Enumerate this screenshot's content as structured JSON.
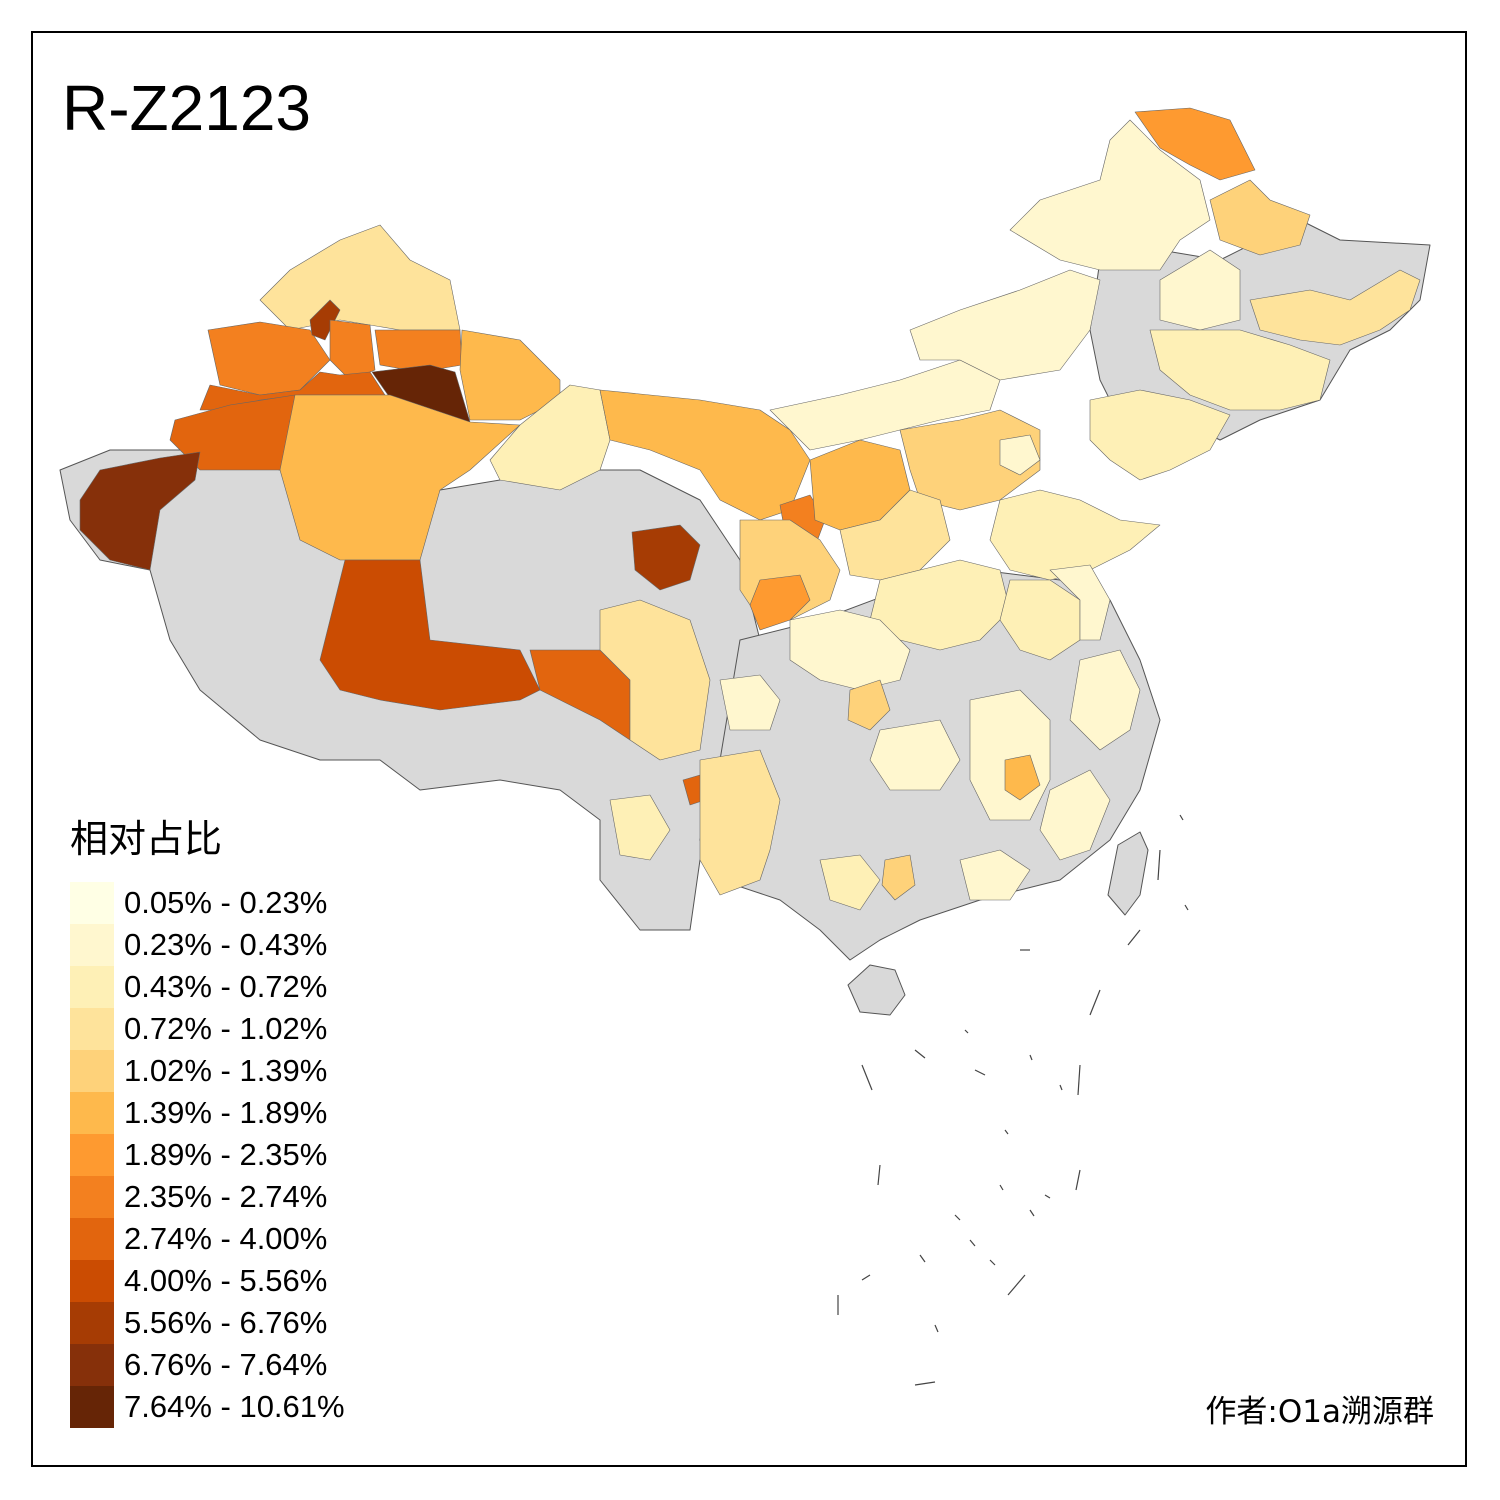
{
  "title": "R-Z2123",
  "legend": {
    "title": "相对占比",
    "nodata_color": "#d9d9d9",
    "classes": [
      {
        "label": "0.05% - 0.23%",
        "color": "#ffffe5"
      },
      {
        "label": "0.23% - 0.43%",
        "color": "#fff7cf"
      },
      {
        "label": "0.43% - 0.72%",
        "color": "#fef0b6"
      },
      {
        "label": "0.72% - 1.02%",
        "color": "#fee39b"
      },
      {
        "label": "1.02% - 1.39%",
        "color": "#fed27a"
      },
      {
        "label": "1.39% - 1.89%",
        "color": "#feb94c"
      },
      {
        "label": "1.89% - 2.35%",
        "color": "#fe9a30"
      },
      {
        "label": "2.35% - 2.74%",
        "color": "#f3801f"
      },
      {
        "label": "2.74% - 4.00%",
        "color": "#e2650e"
      },
      {
        "label": "4.00% - 5.56%",
        "color": "#cb4c02"
      },
      {
        "label": "5.56% - 6.76%",
        "color": "#a63c04"
      },
      {
        "label": "6.76% - 7.64%",
        "color": "#86300a"
      },
      {
        "label": "7.64% - 10.61%",
        "color": "#662506"
      }
    ]
  },
  "author": "作者:O1a溯源群"
}
